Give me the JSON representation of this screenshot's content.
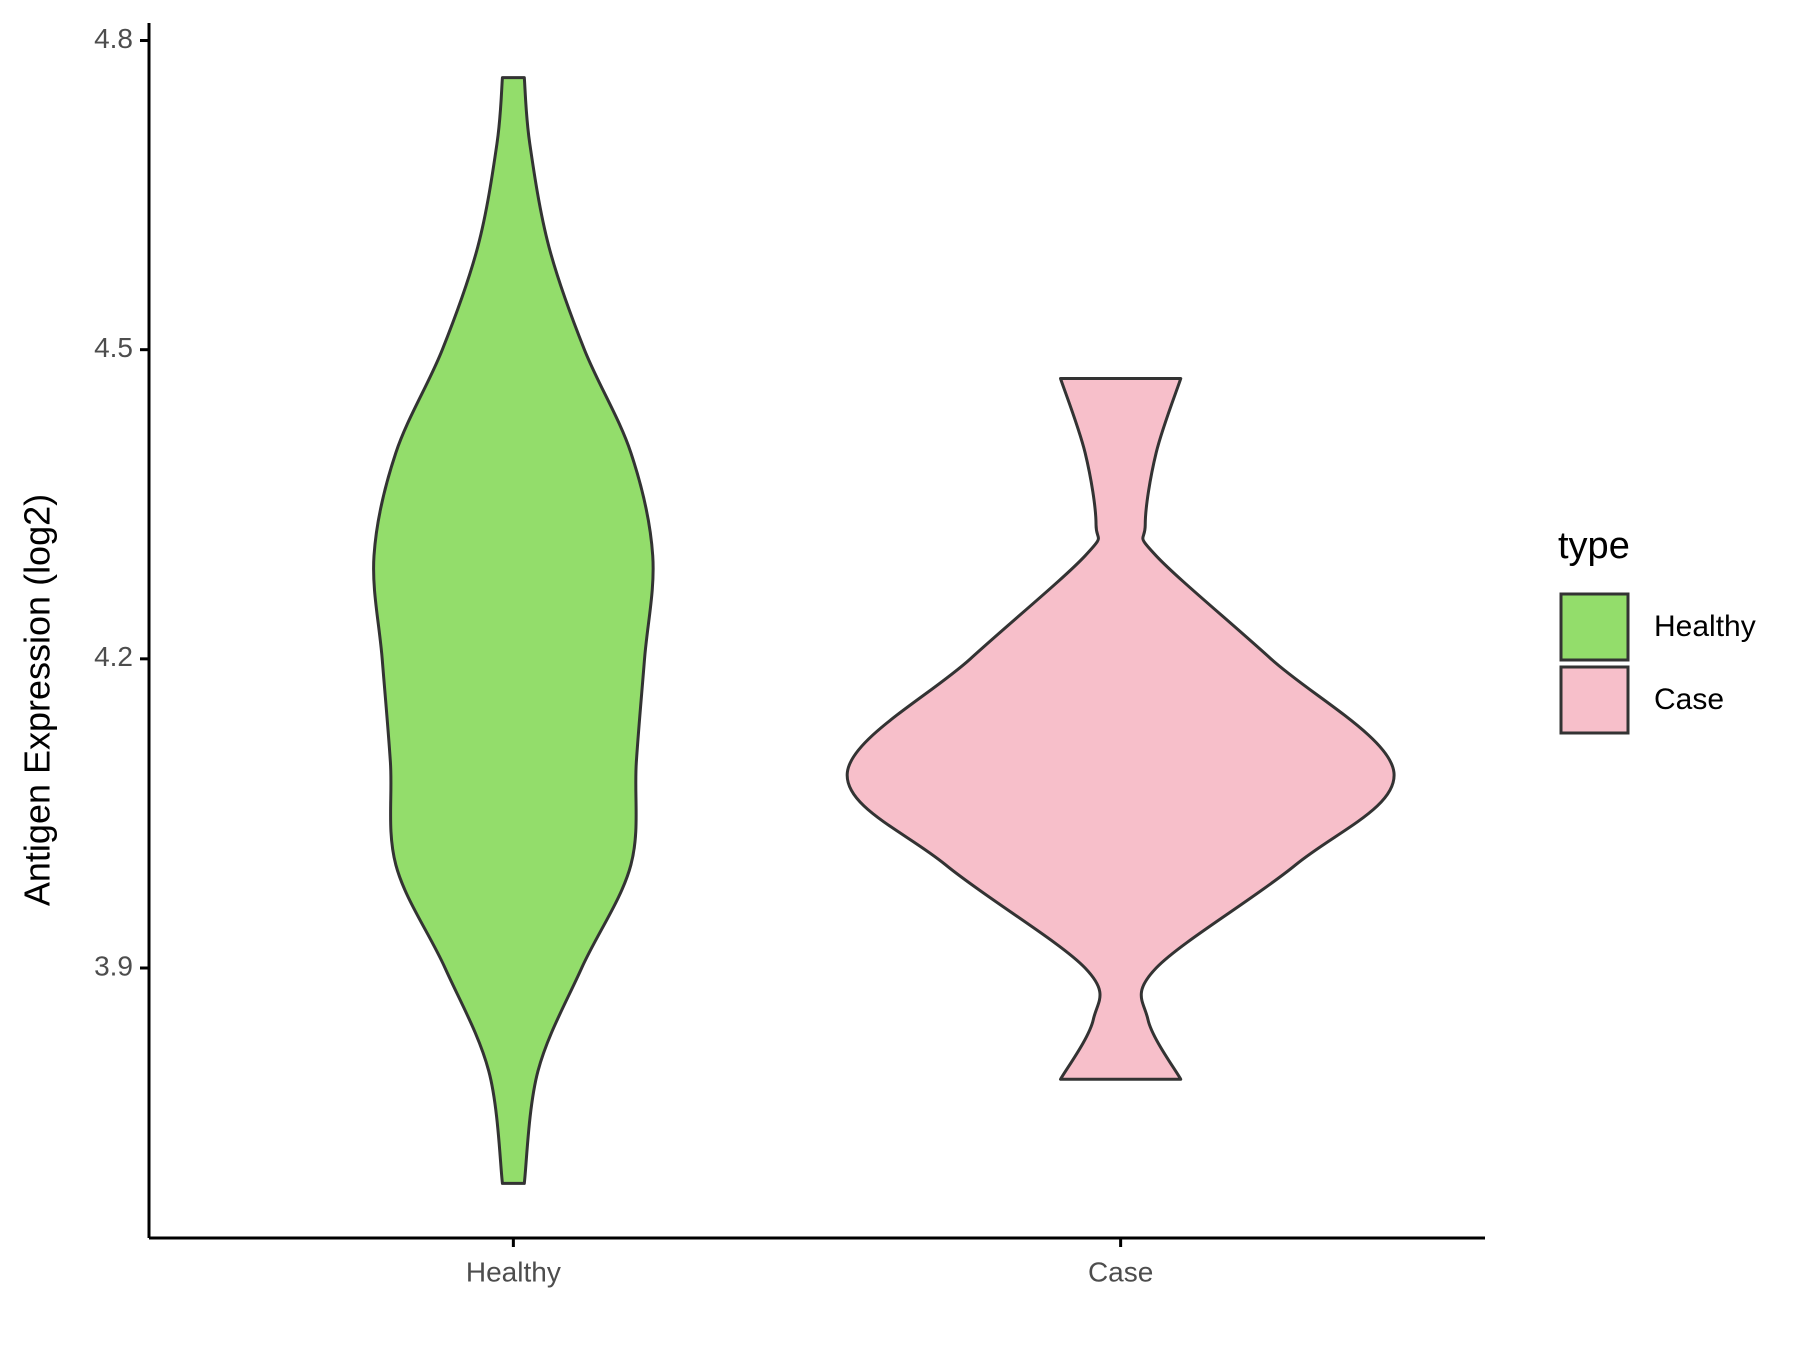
{
  "chart_data": {
    "type": "violin",
    "y_label": "Antigen Expression (log2)",
    "categories": [
      "Healthy",
      "Case"
    ],
    "ylim": [
      3.638,
      4.817
    ],
    "yticks": [
      3.9,
      4.2,
      4.5,
      4.8
    ],
    "legend_title": "type",
    "legend_position": "right",
    "series": [
      {
        "name": "Healthy",
        "color": "#93DD6B",
        "density_y": [
          3.691,
          3.8,
          3.9,
          4.0,
          4.1,
          4.2,
          4.3,
          4.4,
          4.5,
          4.6,
          4.7,
          4.764
        ],
        "density": [
          0.04,
          0.09,
          0.25,
          0.43,
          0.45,
          0.48,
          0.51,
          0.43,
          0.26,
          0.13,
          0.06,
          0.04
        ]
      },
      {
        "name": "Case",
        "color": "#F7BFCA",
        "density_y": [
          3.792,
          3.85,
          3.9,
          4.0,
          4.09,
          4.2,
          4.3,
          4.33,
          4.4,
          4.472
        ],
        "density": [
          0.22,
          0.1,
          0.13,
          0.64,
          1.0,
          0.55,
          0.13,
          0.09,
          0.13,
          0.22
        ]
      }
    ]
  }
}
